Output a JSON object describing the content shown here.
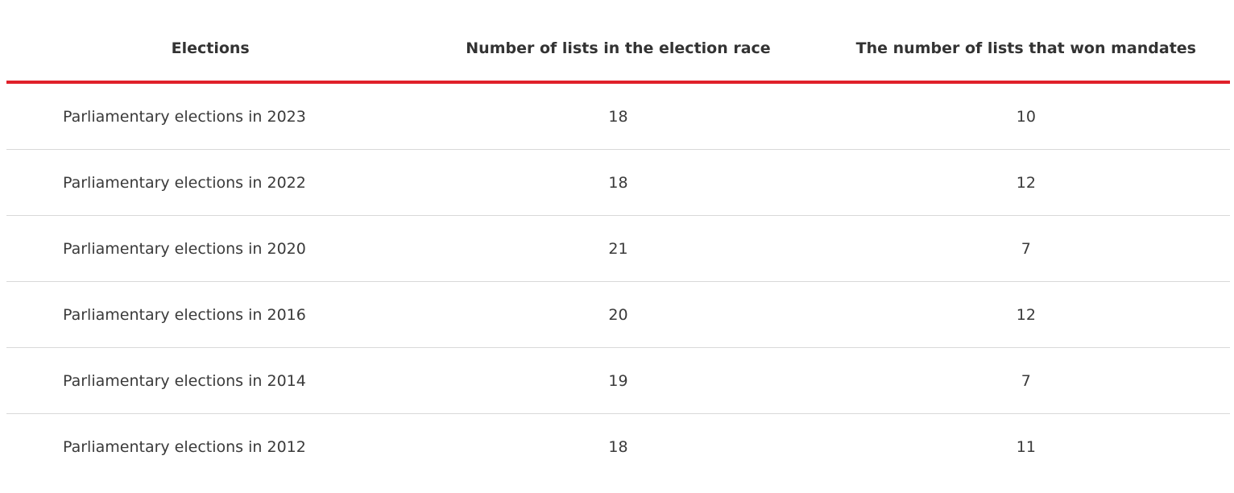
{
  "table": {
    "header": [
      "Elections",
      "Number of lists in the election race",
      "The number of lists that won mandates"
    ],
    "rows": [
      [
        "Parliamentary elections in 2023",
        18,
        10
      ],
      [
        "Parliamentary elections in 2022",
        18,
        12
      ],
      [
        "Parliamentary elections in 2020",
        21,
        7
      ],
      [
        "Parliamentary elections in 2016",
        20,
        12
      ],
      [
        "Parliamentary elections in 2014",
        19,
        7
      ],
      [
        "Parliamentary elections in 2012",
        18,
        11
      ]
    ]
  }
}
